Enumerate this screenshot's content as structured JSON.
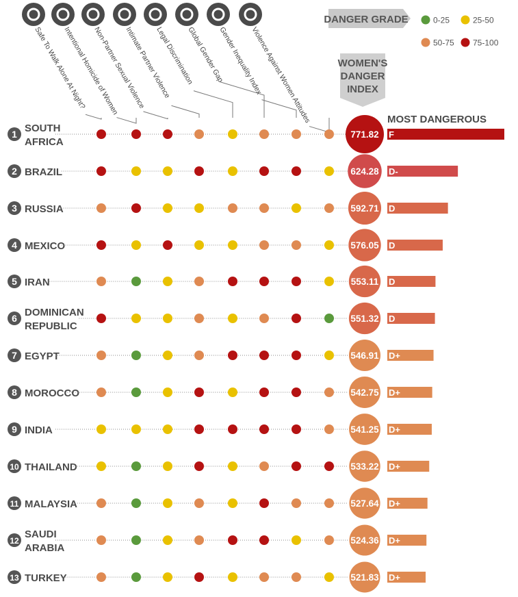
{
  "legend": {
    "title": "Danger Grade",
    "items": [
      {
        "label": "0-25",
        "color": "#5a9a3c"
      },
      {
        "label": "25-50",
        "color": "#e9c100"
      },
      {
        "label": "50-75",
        "color": "#df8a52"
      },
      {
        "label": "75-100",
        "color": "#b51212"
      }
    ]
  },
  "index_header": [
    "Women's",
    "Danger",
    "Index"
  ],
  "most_dangerous_label": "Most Dangerous",
  "chart_data": {
    "type": "table",
    "indicators": [
      {
        "label": "Safe To Walk Alone At Night?",
        "icon": "pointing-hand-icon"
      },
      {
        "label": "Intentional Homicide of Women",
        "icon": "gun-icon"
      },
      {
        "label": "Non-Partner Sexual Violence",
        "icon": "wrench-icon"
      },
      {
        "label": "Intimate Partner Violence",
        "icon": "broken-heart-icon"
      },
      {
        "label": "Legal Discrimination",
        "icon": "scroll-icon"
      },
      {
        "label": "Global Gender Gap",
        "icon": "capitol-icon"
      },
      {
        "label": "Gender Inequality Index",
        "icon": "money-icon"
      },
      {
        "label": "Violence Against Women Attitudes",
        "icon": "skull-icon"
      }
    ],
    "grade_key": {
      "g": "0-25",
      "y": "25-50",
      "o": "50-75",
      "r": "75-100"
    },
    "countries": [
      {
        "rank": "1",
        "name": "South Africa",
        "lines": [
          "South",
          "Africa"
        ],
        "dots": [
          "r",
          "r",
          "r",
          "o",
          "y",
          "o",
          "o",
          "o"
        ],
        "score": 771.82,
        "score_label": "771.82",
        "grade": "F"
      },
      {
        "rank": "2",
        "name": "Brazil",
        "lines": [
          "Brazil"
        ],
        "dots": [
          "r",
          "y",
          "y",
          "r",
          "y",
          "r",
          "r",
          "y"
        ],
        "score": 624.28,
        "score_label": "624.28",
        "grade": "D-"
      },
      {
        "rank": "3",
        "name": "Russia",
        "lines": [
          "Russia"
        ],
        "dots": [
          "o",
          "r",
          "y",
          "y",
          "o",
          "o",
          "y",
          "o"
        ],
        "score": 592.71,
        "score_label": "592.71",
        "grade": "D"
      },
      {
        "rank": "4",
        "name": "Mexico",
        "lines": [
          "Mexico"
        ],
        "dots": [
          "r",
          "y",
          "r",
          "y",
          "y",
          "o",
          "o",
          "y"
        ],
        "score": 576.05,
        "score_label": "576.05",
        "grade": "D"
      },
      {
        "rank": "5",
        "name": "Iran",
        "lines": [
          "Iran"
        ],
        "dots": [
          "o",
          "g",
          "y",
          "o",
          "r",
          "r",
          "r",
          "y"
        ],
        "score": 553.11,
        "score_label": "553.11",
        "grade": "D"
      },
      {
        "rank": "6",
        "name": "Dominican Republic",
        "lines": [
          "Dominican",
          "Republic"
        ],
        "dots": [
          "r",
          "y",
          "y",
          "o",
          "y",
          "o",
          "r",
          "g"
        ],
        "score": 551.32,
        "score_label": "551.32",
        "grade": "D"
      },
      {
        "rank": "7",
        "name": "Egypt",
        "lines": [
          "Egypt"
        ],
        "dots": [
          "o",
          "g",
          "y",
          "o",
          "r",
          "r",
          "r",
          "y"
        ],
        "score": 546.91,
        "score_label": "546.91",
        "grade": "D+"
      },
      {
        "rank": "8",
        "name": "Morocco",
        "lines": [
          "Morocco"
        ],
        "dots": [
          "o",
          "g",
          "y",
          "r",
          "y",
          "r",
          "r",
          "o"
        ],
        "score": 542.75,
        "score_label": "542.75",
        "grade": "D+"
      },
      {
        "rank": "9",
        "name": "India",
        "lines": [
          "India"
        ],
        "dots": [
          "y",
          "y",
          "y",
          "r",
          "r",
          "r",
          "r",
          "o"
        ],
        "score": 541.25,
        "score_label": "541.25",
        "grade": "D+"
      },
      {
        "rank": "10",
        "name": "Thailand",
        "lines": [
          "Thailand"
        ],
        "dots": [
          "y",
          "g",
          "y",
          "r",
          "y",
          "o",
          "r",
          "r"
        ],
        "score": 533.22,
        "score_label": "533.22",
        "grade": "D+"
      },
      {
        "rank": "11",
        "name": "Malaysia",
        "lines": [
          "Malaysia"
        ],
        "dots": [
          "o",
          "g",
          "y",
          "o",
          "y",
          "r",
          "o",
          "o"
        ],
        "score": 527.64,
        "score_label": "527.64",
        "grade": "D+"
      },
      {
        "rank": "12",
        "name": "Saudi Arabia",
        "lines": [
          "Saudi",
          "Arabia"
        ],
        "dots": [
          "o",
          "g",
          "y",
          "o",
          "r",
          "r",
          "y",
          "o"
        ],
        "score": 524.36,
        "score_label": "524.36",
        "grade": "D+"
      },
      {
        "rank": "13",
        "name": "Turkey",
        "lines": [
          "Turkey"
        ],
        "dots": [
          "o",
          "g",
          "y",
          "r",
          "y",
          "o",
          "o",
          "y"
        ],
        "score": 521.83,
        "score_label": "521.83",
        "grade": "D+"
      }
    ],
    "bar_colors": {
      "F": "#b51212",
      "D-": "#d04b4b",
      "D": "#d8684a",
      "D+": "#df8a52"
    },
    "circle_colors": {
      "F": "#b51212",
      "D-": "#d04b4b",
      "D": "#d8684a",
      "D+": "#df8a52"
    }
  }
}
